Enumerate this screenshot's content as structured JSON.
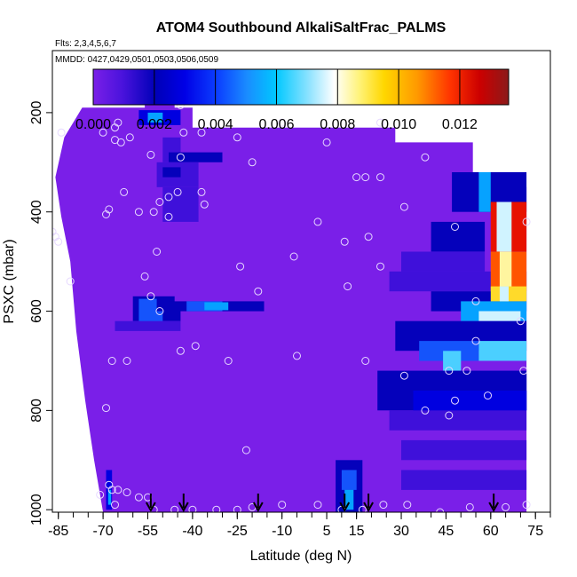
{
  "chart_data": {
    "type": "heatmap",
    "title": "ATOM4 Southbound AlkaliSaltFrac_PALMS",
    "subtitle": "Flts: 2,3,4,5,6,7",
    "annotation": "MMDD: 0427,0429,0501,0503,0506,0509",
    "xlabel": "Latitude (deg N)",
    "ylabel": "PSXC (mbar)",
    "xlim": [
      -87,
      80
    ],
    "ylim": [
      1005,
      75
    ],
    "x_ticks": [
      -85,
      -70,
      -55,
      -40,
      -25,
      -10,
      5,
      15,
      30,
      45,
      60,
      75
    ],
    "x_tick_labels": [
      "-85",
      "-70",
      "-55",
      "-40",
      "-25",
      "-10",
      "5",
      "15",
      "30",
      "45",
      "60",
      "75"
    ],
    "y_ticks": [
      200,
      400,
      600,
      800,
      1000
    ],
    "y_tick_labels": [
      "200",
      "400",
      "600",
      "800",
      "1000"
    ],
    "colorbar": {
      "range": [
        0,
        0.0136
      ],
      "ticks": [
        0.0,
        0.002,
        0.004,
        0.006,
        0.008,
        0.01,
        0.012
      ],
      "tick_labels": [
        "0.000",
        "0.002",
        "0.004",
        "0.006",
        "0.008",
        "0.010",
        "0.012"
      ],
      "colors": [
        "#7a1fe8",
        "#3c0fd9",
        "#0000b8",
        "#0000e6",
        "#1a66ff",
        "#00b3ff",
        "#66d9ff",
        "#ffffff",
        "#fff06b",
        "#ffcc00",
        "#ff8c00",
        "#ff2200",
        "#cc0000",
        "#8b1a1a"
      ]
    },
    "background_color": "#7a1fe8",
    "field_outline": [
      [
        -77,
        190
      ],
      [
        -56,
        190
      ],
      [
        -56,
        150
      ],
      [
        -46,
        150
      ],
      [
        -46,
        190
      ],
      [
        -40,
        190
      ],
      [
        -40,
        230
      ],
      [
        28,
        230
      ],
      [
        28,
        260
      ],
      [
        54,
        260
      ],
      [
        54,
        320
      ],
      [
        70,
        320
      ],
      [
        72,
        350
      ],
      [
        72,
        1005
      ],
      [
        -70,
        1005
      ],
      [
        -73,
        900
      ],
      [
        -76,
        780
      ],
      [
        -79,
        640
      ],
      [
        -81,
        500
      ],
      [
        -84,
        410
      ],
      [
        -86,
        330
      ],
      [
        -83,
        250
      ]
    ],
    "cells": [
      [
        -58,
        -44,
        195,
        225,
        0.003
      ],
      [
        -55,
        -50,
        200,
        220,
        0.005
      ],
      [
        -50,
        -44,
        250,
        300,
        0.001
      ],
      [
        -48,
        -30,
        280,
        300,
        0.002
      ],
      [
        -52,
        -38,
        300,
        350,
        0.001
      ],
      [
        -50,
        -44,
        310,
        330,
        0.002
      ],
      [
        -50,
        -38,
        350,
        420,
        0.001
      ],
      [
        -60,
        -46,
        570,
        600,
        0.002
      ],
      [
        -58,
        -52,
        575,
        600,
        0.004
      ],
      [
        -48,
        -16,
        580,
        600,
        0.002
      ],
      [
        -42,
        -30,
        580,
        600,
        0.004
      ],
      [
        -36,
        -28,
        582,
        598,
        0.005
      ],
      [
        -60,
        -44,
        600,
        620,
        0.002
      ],
      [
        -58,
        -50,
        600,
        625,
        0.004
      ],
      [
        -66,
        -44,
        620,
        640,
        0.001
      ],
      [
        8,
        17,
        900,
        1005,
        0.002
      ],
      [
        10,
        15,
        920,
        960,
        0.004
      ],
      [
        11,
        14,
        960,
        1000,
        0.005
      ],
      [
        -69,
        -67,
        920,
        1000,
        0.003
      ],
      [
        -68.3,
        -67.3,
        960,
        990,
        0.005
      ],
      [
        26,
        72,
        520,
        560,
        0.001
      ],
      [
        40,
        72,
        560,
        600,
        0.002
      ],
      [
        50,
        72,
        580,
        620,
        0.005
      ],
      [
        56,
        70,
        600,
        620,
        0.007
      ],
      [
        28,
        72,
        620,
        680,
        0.002
      ],
      [
        36,
        56,
        660,
        700,
        0.004
      ],
      [
        44,
        50,
        680,
        720,
        0.006
      ],
      [
        56,
        72,
        660,
        700,
        0.006
      ],
      [
        22,
        72,
        720,
        800,
        0.002
      ],
      [
        34,
        72,
        760,
        800,
        0.003
      ],
      [
        26,
        72,
        800,
        840,
        0.001
      ],
      [
        30,
        72,
        860,
        900,
        0.001
      ],
      [
        30,
        72,
        920,
        960,
        0.001
      ],
      [
        47,
        72,
        320,
        400,
        0.002
      ],
      [
        56,
        60,
        320,
        400,
        0.005
      ],
      [
        60,
        72,
        380,
        480,
        0.012
      ],
      [
        62,
        67,
        380,
        480,
        0.007
      ],
      [
        60,
        72,
        480,
        560,
        0.011
      ],
      [
        63,
        67,
        480,
        560,
        0.008
      ],
      [
        60,
        72,
        550,
        580,
        0.009
      ],
      [
        63,
        66,
        550,
        580,
        0.007
      ],
      [
        40,
        58,
        420,
        480,
        0.002
      ],
      [
        30,
        58,
        480,
        520,
        0.001
      ]
    ],
    "series": [
      {
        "type": "scatter",
        "points": [
          [
            -84,
            240
          ],
          [
            -70,
            240
          ],
          [
            -66,
            230
          ],
          [
            -65,
            220
          ],
          [
            -66,
            255
          ],
          [
            -61,
            250
          ],
          [
            -54,
            285
          ],
          [
            -43,
            240
          ],
          [
            -37,
            240
          ],
          [
            -25,
            250
          ],
          [
            -44,
            290
          ],
          [
            -20,
            300
          ],
          [
            -64,
            260
          ],
          [
            -68,
            395
          ],
          [
            -63,
            360
          ],
          [
            -58,
            400
          ],
          [
            -48,
            370
          ],
          [
            -37,
            360
          ],
          [
            -36,
            385
          ],
          [
            -45,
            360
          ],
          [
            -51,
            380
          ],
          [
            -53,
            400
          ],
          [
            -48,
            410
          ],
          [
            -52,
            480
          ],
          [
            -69,
            405
          ],
          [
            -81,
            540
          ],
          [
            -56,
            530
          ],
          [
            -24,
            510
          ],
          [
            -6,
            490
          ],
          [
            2,
            420
          ],
          [
            11,
            460
          ],
          [
            -10,
            220
          ],
          [
            23,
            220
          ],
          [
            5,
            260
          ],
          [
            38,
            290
          ],
          [
            15,
            330
          ],
          [
            18,
            330
          ],
          [
            23,
            330
          ],
          [
            31,
            390
          ],
          [
            19,
            450
          ],
          [
            23,
            510
          ],
          [
            48,
            430
          ],
          [
            -54,
            570
          ],
          [
            -51,
            600
          ],
          [
            -18,
            560
          ],
          [
            31,
            730
          ],
          [
            -44,
            680
          ],
          [
            -39,
            670
          ],
          [
            -62,
            700
          ],
          [
            -67,
            700
          ],
          [
            -69,
            795
          ],
          [
            -68,
            950
          ],
          [
            -67,
            960
          ],
          [
            -65,
            960
          ],
          [
            -66,
            990
          ],
          [
            -62,
            965
          ],
          [
            -58,
            975
          ],
          [
            -53,
            1000
          ],
          [
            -46,
            1000
          ],
          [
            -40,
            1000
          ],
          [
            -32,
            1000
          ],
          [
            -25,
            1000
          ],
          [
            -20,
            995
          ],
          [
            -10,
            990
          ],
          [
            2,
            990
          ],
          [
            10,
            1000
          ],
          [
            17,
            1000
          ],
          [
            24,
            990
          ],
          [
            32,
            990
          ],
          [
            43,
            1005
          ],
          [
            53,
            995
          ],
          [
            65,
            995
          ],
          [
            72,
            990
          ],
          [
            -71,
            970
          ],
          [
            -55,
            975
          ],
          [
            48,
            780
          ],
          [
            52,
            720
          ],
          [
            55,
            660
          ],
          [
            59,
            770
          ],
          [
            71,
            720
          ],
          [
            55,
            580
          ],
          [
            46,
            720
          ],
          [
            -22,
            880
          ],
          [
            -5,
            690
          ],
          [
            -28,
            700
          ],
          [
            -87,
            440
          ],
          [
            -86,
            450
          ],
          [
            -85,
            460
          ],
          [
            12,
            550
          ],
          [
            18,
            700
          ],
          [
            38,
            800
          ],
          [
            46,
            810
          ],
          [
            70,
            620
          ],
          [
            -44,
            185
          ],
          [
            72,
            420
          ]
        ]
      }
    ],
    "flight_markers_lat": [
      -54,
      -43,
      -18,
      11,
      19,
      61
    ]
  }
}
